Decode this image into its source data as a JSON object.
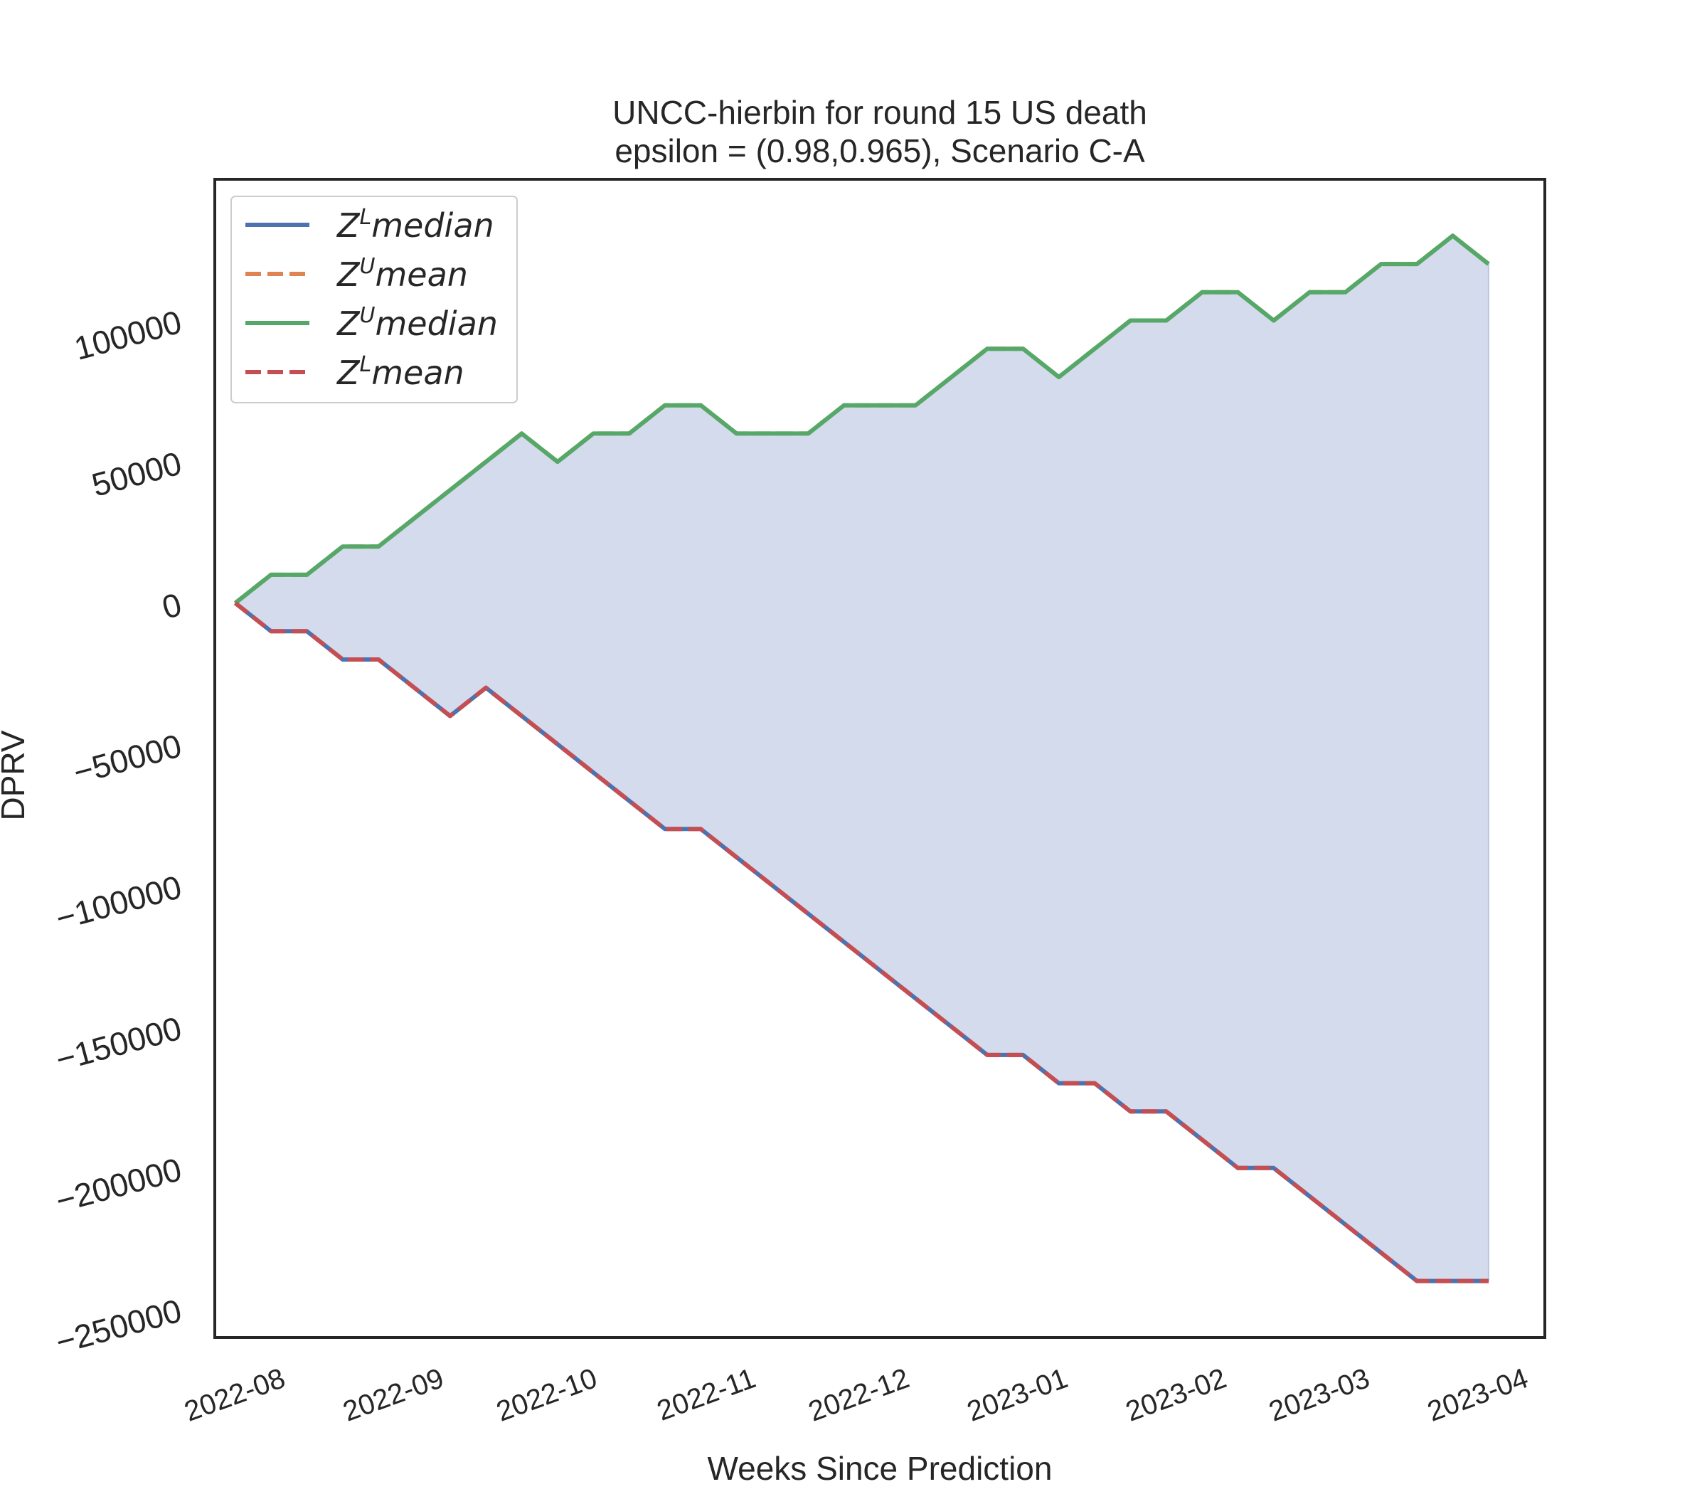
{
  "chart_data": {
    "type": "line",
    "title_line1": "UNCC-hierbin for round 15 US  death",
    "title_line2": "epsilon = (0.98,0.965), Scenario C-A",
    "xlabel": "Weeks Since Prediction",
    "ylabel": "DPRV",
    "xlim": [
      "2022-07-19",
      "2023-04-05"
    ],
    "ylim": [
      -260000,
      150000
    ],
    "x_ticks": [
      "2022-08",
      "2022-09",
      "2022-10",
      "2022-11",
      "2022-12",
      "2023-01",
      "2023-02",
      "2023-03",
      "2023-04"
    ],
    "y_ticks": [
      {
        "value": 100000,
        "label": "100000"
      },
      {
        "value": 50000,
        "label": "50000"
      },
      {
        "value": 0,
        "label": "0"
      },
      {
        "value": -50000,
        "label": "−50000"
      },
      {
        "value": -100000,
        "label": "−100000"
      },
      {
        "value": -150000,
        "label": "−150000"
      },
      {
        "value": -200000,
        "label": "−200000"
      },
      {
        "value": -250000,
        "label": "−250000"
      }
    ],
    "grid": false,
    "legend_placement": "top-left",
    "x": [
      "2022-07-23",
      "2022-07-30",
      "2022-08-06",
      "2022-08-13",
      "2022-08-20",
      "2022-08-27",
      "2022-09-03",
      "2022-09-10",
      "2022-09-17",
      "2022-09-24",
      "2022-10-01",
      "2022-10-08",
      "2022-10-15",
      "2022-10-22",
      "2022-10-29",
      "2022-11-05",
      "2022-11-12",
      "2022-11-19",
      "2022-11-26",
      "2022-12-03",
      "2022-12-10",
      "2022-12-17",
      "2022-12-24",
      "2022-12-31",
      "2023-01-07",
      "2023-01-14",
      "2023-01-21",
      "2023-01-28",
      "2023-02-04",
      "2023-02-11",
      "2023-02-18",
      "2023-02-25",
      "2023-03-04",
      "2023-03-11",
      "2023-03-18",
      "2023-03-25"
    ],
    "series": [
      {
        "label_base": "Z",
        "label_sup": "L",
        "label_rest": "median",
        "color": "#4c72b0",
        "dash": "solid",
        "values": [
          0,
          -10000,
          -10000,
          -20000,
          -20000,
          -30000,
          -40000,
          -30000,
          -40000,
          -50000,
          -60000,
          -70000,
          -80000,
          -80000,
          -90000,
          -100000,
          -110000,
          -120000,
          -130000,
          -140000,
          -150000,
          -160000,
          -160000,
          -170000,
          -170000,
          -180000,
          -180000,
          -190000,
          -200000,
          -200000,
          -210000,
          -220000,
          -230000,
          -240000,
          -240000,
          -240000
        ]
      },
      {
        "label_base": "Z",
        "label_sup": "U",
        "label_rest": "mean",
        "color": "#dd8452",
        "dash": "dashed",
        "values": [
          0,
          10000,
          10000,
          20000,
          20000,
          30000,
          40000,
          50000,
          60000,
          50000,
          60000,
          60000,
          70000,
          70000,
          60000,
          60000,
          60000,
          70000,
          70000,
          70000,
          80000,
          90000,
          90000,
          80000,
          90000,
          100000,
          100000,
          110000,
          110000,
          100000,
          110000,
          110000,
          120000,
          120000,
          130000,
          120000
        ]
      },
      {
        "label_base": "Z",
        "label_sup": "U",
        "label_rest": "median",
        "color": "#55a868",
        "dash": "solid",
        "values": [
          0,
          10000,
          10000,
          20000,
          20000,
          30000,
          40000,
          50000,
          60000,
          50000,
          60000,
          60000,
          70000,
          70000,
          60000,
          60000,
          60000,
          70000,
          70000,
          70000,
          80000,
          90000,
          90000,
          80000,
          90000,
          100000,
          100000,
          110000,
          110000,
          100000,
          110000,
          110000,
          120000,
          120000,
          130000,
          120000
        ]
      },
      {
        "label_base": "Z",
        "label_sup": "L",
        "label_rest": "mean",
        "color": "#c44e52",
        "dash": "dashed",
        "values": [
          0,
          -10000,
          -10000,
          -20000,
          -20000,
          -30000,
          -40000,
          -30000,
          -40000,
          -50000,
          -60000,
          -70000,
          -80000,
          -80000,
          -90000,
          -100000,
          -110000,
          -120000,
          -130000,
          -140000,
          -150000,
          -160000,
          -160000,
          -170000,
          -170000,
          -180000,
          -180000,
          -190000,
          -200000,
          -200000,
          -210000,
          -220000,
          -230000,
          -240000,
          -240000,
          -240000
        ]
      }
    ],
    "fill_between": {
      "upper_series": 2,
      "lower_series": 0,
      "color": "#d3dbec"
    }
  }
}
